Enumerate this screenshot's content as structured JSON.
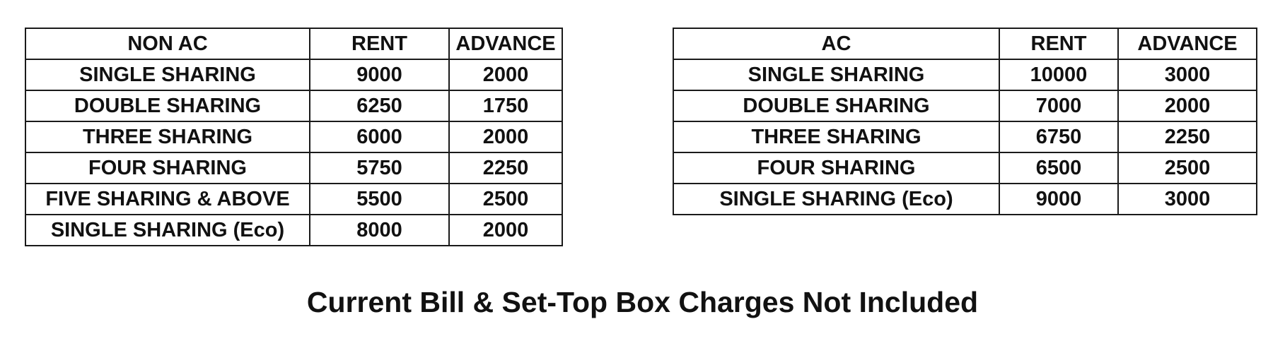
{
  "non_ac_table": {
    "headers": [
      "NON AC",
      "RENT",
      "ADVANCE"
    ],
    "rows": [
      [
        "SINGLE SHARING",
        "9000",
        "2000"
      ],
      [
        "DOUBLE SHARING",
        "6250",
        "1750"
      ],
      [
        "THREE SHARING",
        "6000",
        "2000"
      ],
      [
        "FOUR SHARING",
        "5750",
        "2250"
      ],
      [
        "FIVE SHARING & ABOVE",
        "5500",
        "2500"
      ],
      [
        "SINGLE SHARING (Eco)",
        "8000",
        "2000"
      ]
    ]
  },
  "ac_table": {
    "headers": [
      "AC",
      "RENT",
      "ADVANCE"
    ],
    "rows": [
      [
        "SINGLE SHARING",
        "10000",
        "3000"
      ],
      [
        "DOUBLE SHARING",
        "7000",
        "2000"
      ],
      [
        "THREE SHARING",
        "6750",
        "2250"
      ],
      [
        "FOUR SHARING",
        "6500",
        "2500"
      ],
      [
        "SINGLE SHARING (Eco)",
        "9000",
        "3000"
      ]
    ]
  },
  "footer_note": "Current Bill & Set-Top Box Charges Not Included"
}
